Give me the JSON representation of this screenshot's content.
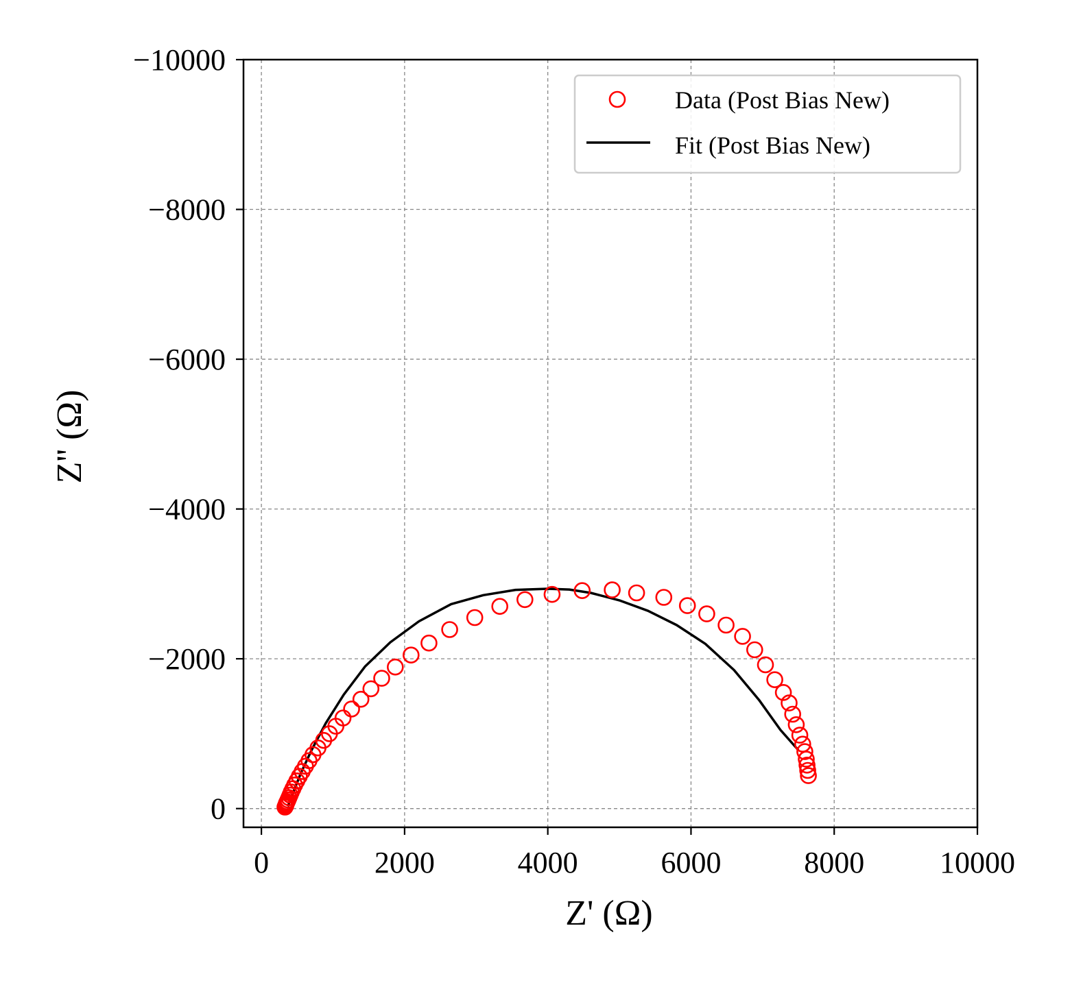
{
  "chart_data": {
    "type": "scatter",
    "xlabel": "Z'  (Ω)",
    "ylabel": "Z''  (Ω)",
    "xlim": [
      -250,
      10000
    ],
    "ylim": [
      250,
      -10000
    ],
    "y_inverted": true,
    "x_ticks": [
      0,
      2000,
      4000,
      6000,
      8000,
      10000
    ],
    "x_tick_labels": [
      "0",
      "2000",
      "4000",
      "6000",
      "8000",
      "10000"
    ],
    "y_ticks": [
      0,
      -2000,
      -4000,
      -6000,
      -8000,
      -10000
    ],
    "y_tick_labels": [
      "0",
      "−2000",
      "−4000",
      "−6000",
      "−8000",
      "−10000"
    ],
    "grid": true,
    "legend_position": "top-right",
    "series": [
      {
        "name": "Data (Post Bias New)",
        "kind": "markers",
        "marker": "open-circle",
        "color": "#ff0000",
        "x": [
          330,
          335,
          340,
          345,
          350,
          360,
          372,
          385,
          400,
          418,
          440,
          465,
          495,
          530,
          570,
          615,
          665,
          720,
          790,
          870,
          950,
          1040,
          1140,
          1260,
          1390,
          1530,
          1680,
          1870,
          2090,
          2340,
          2630,
          2980,
          3330,
          3680,
          4060,
          4480,
          4900,
          5240,
          5620,
          5950,
          6220,
          6490,
          6720,
          6890,
          7040,
          7170,
          7290,
          7370,
          7420,
          7470,
          7520,
          7560,
          7590,
          7610,
          7620,
          7630,
          7640
        ],
        "y": [
          -20,
          -30,
          -40,
          -55,
          -70,
          -90,
          -115,
          -145,
          -180,
          -220,
          -265,
          -315,
          -370,
          -430,
          -495,
          -565,
          -640,
          -720,
          -810,
          -910,
          -1000,
          -1100,
          -1210,
          -1330,
          -1460,
          -1600,
          -1740,
          -1890,
          -2050,
          -2210,
          -2390,
          -2550,
          -2700,
          -2790,
          -2860,
          -2910,
          -2920,
          -2880,
          -2820,
          -2710,
          -2600,
          -2450,
          -2300,
          -2120,
          -1920,
          -1720,
          -1550,
          -1410,
          -1260,
          -1120,
          -980,
          -860,
          -760,
          -660,
          -580,
          -510,
          -440
        ]
      },
      {
        "name": "Fit (Post Bias New)",
        "kind": "line",
        "color": "#000000",
        "x": [
          370,
          450,
          550,
          700,
          900,
          1150,
          1450,
          1800,
          2200,
          2650,
          3100,
          3550,
          4000,
          4300,
          4600,
          5000,
          5400,
          5800,
          6200,
          6600,
          6950,
          7250,
          7500
        ],
        "y": [
          -30,
          -230,
          -470,
          -780,
          -1140,
          -1520,
          -1900,
          -2220,
          -2500,
          -2730,
          -2850,
          -2920,
          -2935,
          -2925,
          -2880,
          -2780,
          -2640,
          -2450,
          -2200,
          -1850,
          -1450,
          -1050,
          -780
        ]
      }
    ]
  }
}
